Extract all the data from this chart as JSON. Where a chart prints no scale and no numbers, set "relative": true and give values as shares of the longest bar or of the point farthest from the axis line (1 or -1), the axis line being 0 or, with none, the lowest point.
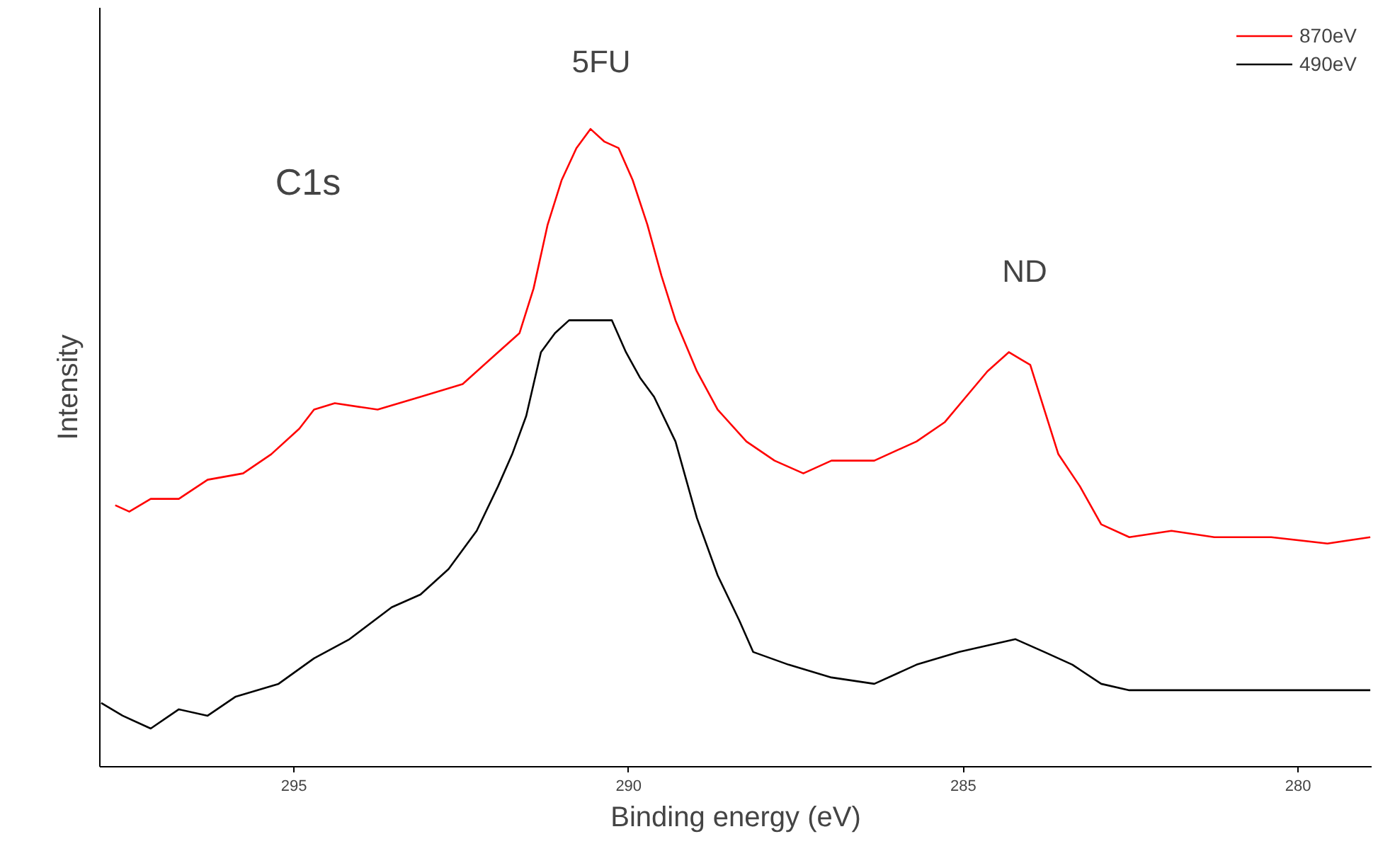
{
  "chart_data": {
    "type": "line",
    "xlabel": "Binding energy (eV)",
    "ylabel": "Intensity",
    "relative": true,
    "xlim": [
      297.9,
      278.9
    ],
    "xticks": [
      295,
      290,
      285,
      280
    ],
    "legend": "top right",
    "grid": false,
    "marker": "none",
    "line_style": "solid",
    "annotations": [
      "C1s",
      "5FU",
      "ND"
    ],
    "series": [
      {
        "name": "870eV",
        "color": "#ff0000",
        "x": [
          297.67,
          297.46,
          297.14,
          296.72,
          296.29,
          295.76,
          295.34,
          294.92,
          294.7,
          294.39,
          293.75,
          293.11,
          292.48,
          291.95,
          291.63,
          291.42,
          291.21,
          291.0,
          290.78,
          290.57,
          290.36,
          290.15,
          289.94,
          289.72,
          289.51,
          289.3,
          288.98,
          288.67,
          288.24,
          287.82,
          287.39,
          286.97,
          286.33,
          285.7,
          285.28,
          284.96,
          284.64,
          284.32,
          284.0,
          283.79,
          283.58,
          283.26,
          282.94,
          282.52,
          281.89,
          281.25,
          280.4,
          279.56,
          278.92
        ],
        "values": [
          0.41,
          0.4,
          0.42,
          0.42,
          0.45,
          0.46,
          0.49,
          0.53,
          0.56,
          0.57,
          0.56,
          0.58,
          0.6,
          0.65,
          0.68,
          0.75,
          0.85,
          0.92,
          0.97,
          1.0,
          0.98,
          0.97,
          0.92,
          0.85,
          0.77,
          0.7,
          0.62,
          0.56,
          0.51,
          0.48,
          0.46,
          0.48,
          0.48,
          0.51,
          0.54,
          0.58,
          0.62,
          0.65,
          0.63,
          0.56,
          0.49,
          0.44,
          0.38,
          0.36,
          0.37,
          0.36,
          0.36,
          0.35,
          0.36
        ]
      },
      {
        "name": "490eV",
        "color": "#000000",
        "x": [
          297.88,
          297.56,
          297.14,
          296.72,
          296.29,
          295.87,
          295.23,
          294.7,
          294.17,
          293.54,
          293.11,
          292.69,
          292.27,
          291.95,
          291.74,
          291.53,
          291.31,
          291.1,
          290.89,
          290.57,
          290.25,
          290.04,
          289.83,
          289.62,
          289.3,
          288.98,
          288.67,
          288.35,
          288.14,
          287.61,
          286.97,
          286.33,
          285.7,
          285.06,
          284.64,
          284.22,
          283.79,
          283.37,
          282.94,
          282.52,
          281.89,
          281.25,
          280.4,
          279.56,
          278.92
        ],
        "values": [
          0.1,
          0.08,
          0.06,
          0.09,
          0.08,
          0.11,
          0.13,
          0.17,
          0.2,
          0.25,
          0.27,
          0.31,
          0.37,
          0.44,
          0.49,
          0.55,
          0.65,
          0.68,
          0.7,
          0.7,
          0.7,
          0.65,
          0.61,
          0.58,
          0.51,
          0.39,
          0.3,
          0.23,
          0.18,
          0.16,
          0.14,
          0.13,
          0.16,
          0.18,
          0.19,
          0.2,
          0.18,
          0.16,
          0.13,
          0.12,
          0.12,
          0.12,
          0.12,
          0.12,
          0.12
        ]
      }
    ]
  }
}
